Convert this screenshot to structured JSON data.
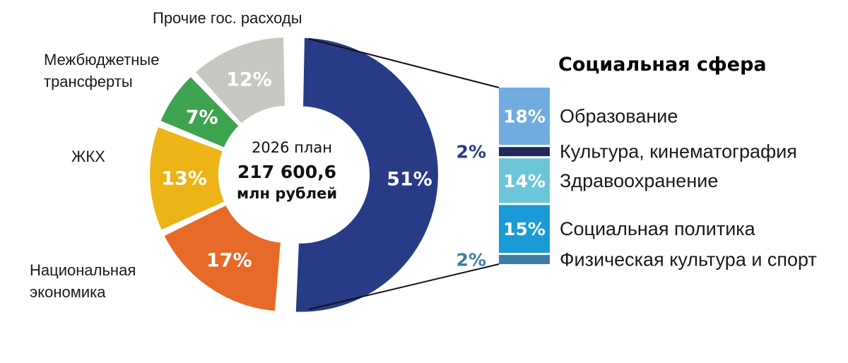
{
  "chart_data": [
    {
      "type": "pie",
      "variant": "donut",
      "center_text": {
        "line1": "2026 план",
        "line2": "217 600,6",
        "line3": "млн рублей"
      },
      "slices": [
        {
          "label": "Социальная сфера",
          "value": 51,
          "value_label": "51%",
          "color": "#283b86",
          "exploded": true
        },
        {
          "label": "Национальная экономика",
          "value": 17,
          "value_label": "17%",
          "color": "#e86a29"
        },
        {
          "label": "ЖКХ",
          "value": 13,
          "value_label": "13%",
          "color": "#ecb416"
        },
        {
          "label": "Межбюджетные трансферты",
          "value": 7,
          "value_label": "7%",
          "color": "#3ea34e"
        },
        {
          "label": "Прочие гос. расходы",
          "value": 12,
          "value_label": "12%",
          "color": "#c8c7c2"
        }
      ]
    },
    {
      "type": "bar",
      "variant": "stacked-breakdown",
      "title": "Социальная сфера",
      "categories": [
        "Образование",
        "Культура, кинематография",
        "Здравоохранение",
        "Социальная политика",
        "Физическая культура и спорт"
      ],
      "values": [
        18,
        2,
        14,
        15,
        2
      ],
      "value_labels": [
        "18%",
        "2%",
        "14%",
        "15%",
        "2%"
      ],
      "colors": [
        "#70ace0",
        "#20285a",
        "#6dc6d8",
        "#1a9bd8",
        "#3f7ea6"
      ]
    }
  ]
}
